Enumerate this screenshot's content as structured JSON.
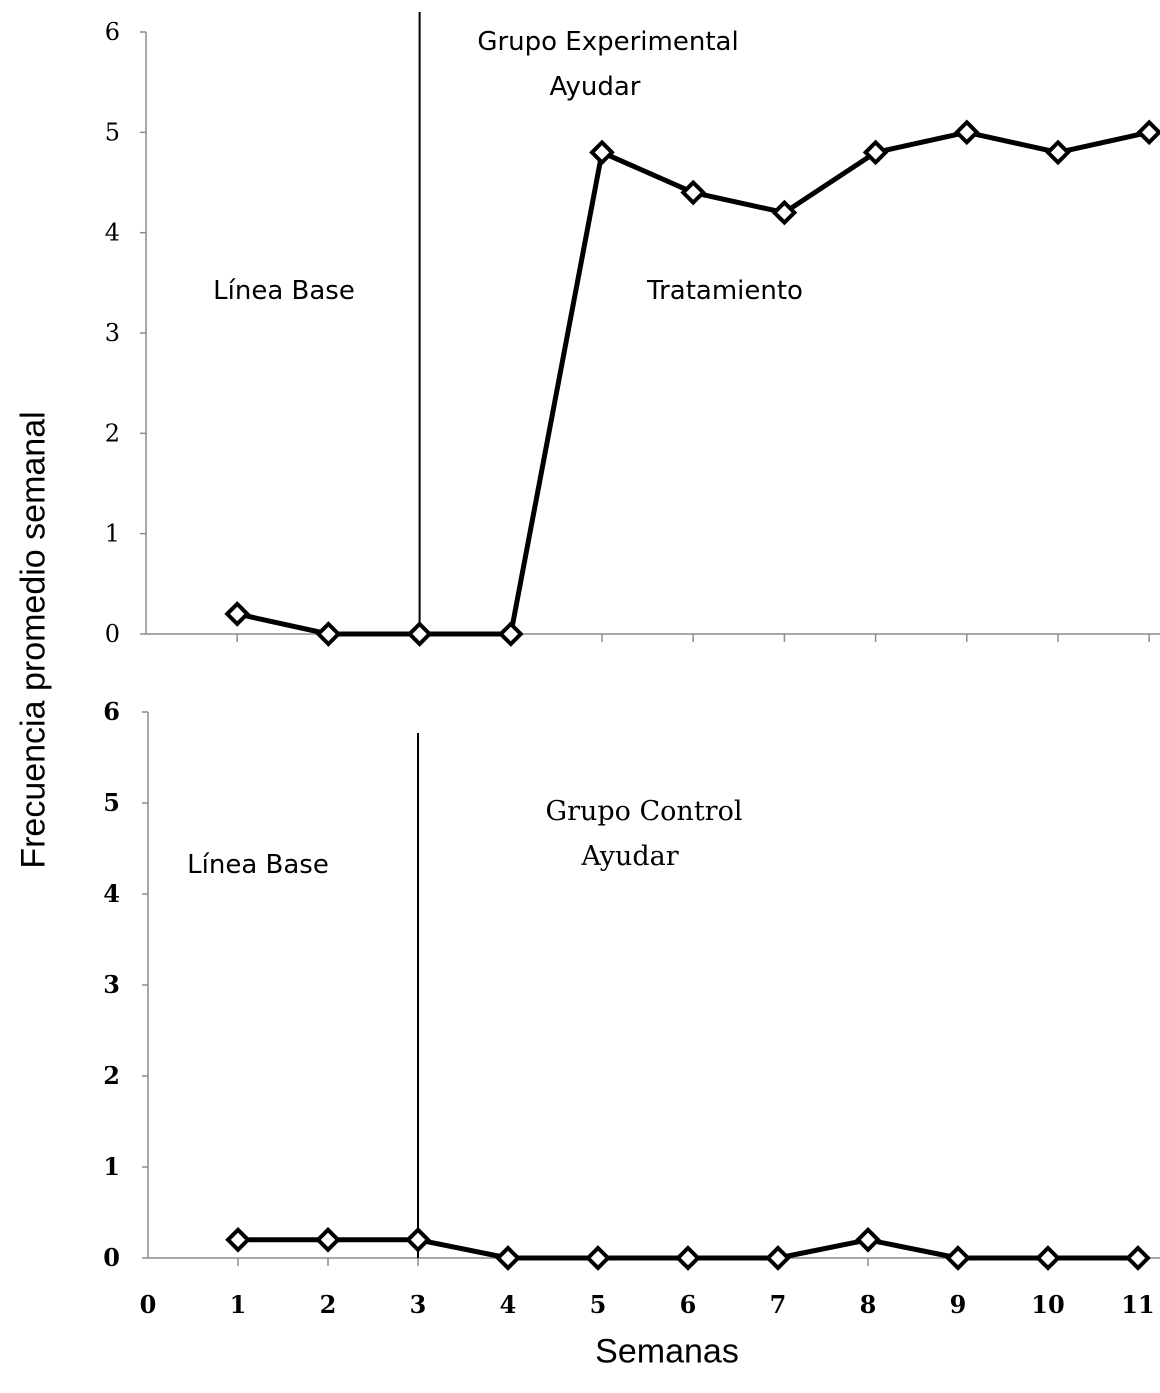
{
  "figure": {
    "ylabel": "Frecuencia promedio semanal",
    "xlabel": "Semanas"
  },
  "chart_data": [
    {
      "type": "line",
      "panel": "top",
      "x": [
        1,
        2,
        3,
        4,
        5,
        6,
        7,
        8,
        9,
        10,
        11
      ],
      "series": [
        {
          "values": [
            0.2,
            0,
            0,
            0,
            4.8,
            4.4,
            4.2,
            4.8,
            5.0,
            4.8,
            5.0
          ],
          "marker": "diamond",
          "color": "#000000"
        }
      ],
      "xlim": [
        0,
        11
      ],
      "ylim": [
        0,
        6
      ],
      "yticks": [
        "0",
        "1",
        "2",
        "3",
        "4",
        "5",
        "6"
      ],
      "xticks": [],
      "phase_line_x": 3,
      "annotations": {
        "group_title_line1": "Grupo Experimental",
        "group_title_line2": "Ayudar",
        "baseline_label": "Línea Base",
        "treatment_label": "Tratamiento"
      },
      "grid": false,
      "legend": "none"
    },
    {
      "type": "line",
      "panel": "bottom",
      "x": [
        1,
        2,
        3,
        4,
        5,
        6,
        7,
        8,
        9,
        10,
        11
      ],
      "series": [
        {
          "values": [
            0.2,
            0.2,
            0.2,
            0,
            0,
            0,
            0,
            0.2,
            0,
            0,
            0
          ],
          "marker": "diamond",
          "color": "#000000"
        }
      ],
      "xlim": [
        0,
        11
      ],
      "ylim": [
        0,
        6
      ],
      "yticks": [
        "0",
        "1",
        "2",
        "3",
        "4",
        "5",
        "6"
      ],
      "xticks": [
        "0",
        "1",
        "2",
        "3",
        "4",
        "5",
        "6",
        "7",
        "8",
        "9",
        "10",
        "11"
      ],
      "phase_line_x": 3,
      "annotations": {
        "group_title_line1": "Grupo Control",
        "group_title_line2": "Ayudar",
        "baseline_label": "Línea Base"
      },
      "grid": false,
      "legend": "none"
    }
  ]
}
